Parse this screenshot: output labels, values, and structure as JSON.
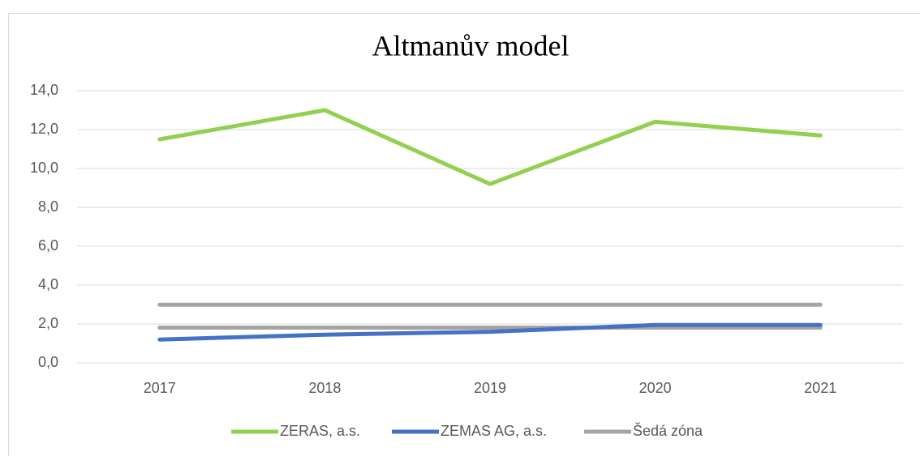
{
  "chart_data": {
    "type": "line",
    "title": "Altmanův model",
    "categories": [
      "2017",
      "2018",
      "2019",
      "2020",
      "2021"
    ],
    "series": [
      {
        "name": "ZERAS, a.s.",
        "color": "#92d050",
        "values": [
          11.5,
          13.0,
          9.2,
          12.4,
          11.7
        ]
      },
      {
        "name": "ZEMAS AG, a.s.",
        "color": "#4472c4",
        "values": [
          1.2,
          1.45,
          1.6,
          1.95,
          1.95
        ]
      },
      {
        "name": "Šedá zóna",
        "color": "#a5a5a5",
        "values": [
          1.81,
          1.81,
          1.81,
          1.81,
          1.81
        ],
        "upper": [
          2.99,
          2.99,
          2.99,
          2.99,
          2.99
        ]
      }
    ],
    "ylim": [
      0,
      14
    ],
    "yticks": [
      {
        "value": 0,
        "label": "0,0"
      },
      {
        "value": 2,
        "label": "2,0"
      },
      {
        "value": 4,
        "label": "4,0"
      },
      {
        "value": 6,
        "label": "6,0"
      },
      {
        "value": 8,
        "label": "8,0"
      },
      {
        "value": 10,
        "label": "10,0"
      },
      {
        "value": 12,
        "label": "12,0"
      },
      {
        "value": 14,
        "label": "14,0"
      }
    ],
    "grid": true,
    "legend": "bottom"
  }
}
